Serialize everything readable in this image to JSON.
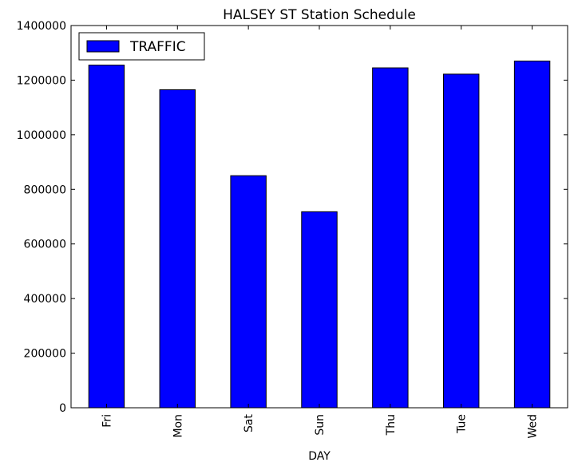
{
  "chart_data": {
    "type": "bar",
    "title": "HALSEY ST Station Schedule",
    "xlabel": "DAY",
    "ylabel": "",
    "categories": [
      "Fri",
      "Mon",
      "Sat",
      "Sun",
      "Thu",
      "Tue",
      "Wed"
    ],
    "series": [
      {
        "name": "TRAFFIC",
        "values": [
          1255000,
          1165000,
          850000,
          718000,
          1245000,
          1222000,
          1270000
        ],
        "color": "#0000ff"
      }
    ],
    "ylim": [
      0,
      1400000
    ],
    "yticks": [
      0,
      200000,
      400000,
      600000,
      800000,
      1000000,
      1200000,
      1400000
    ],
    "ytick_labels": [
      "0",
      "200000",
      "400000",
      "600000",
      "800000",
      "1000000",
      "1200000",
      "1400000"
    ],
    "grid": false,
    "legend": "top-left"
  }
}
